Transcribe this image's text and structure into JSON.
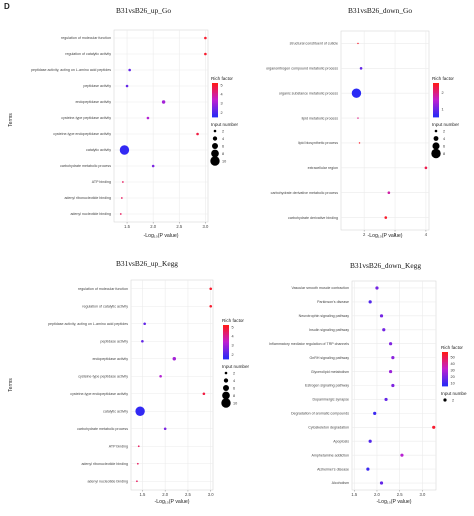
{
  "figure_label": "D",
  "legend_text": {
    "rich_factor": "Rich factor",
    "input_number": "Input number",
    "input_numbe": "Input numbe"
  },
  "colors": {
    "high": "#ff1a1a",
    "mid": "#c020d0",
    "low": "#2a2af5",
    "grid": "#ebebeb",
    "panel_bg": "#ffffff"
  },
  "chart_data": [
    {
      "type": "scatter",
      "title": "B31vsB26_up_Go",
      "xlabel": "-Log₁₀(P value)",
      "ylabel": "Terms",
      "xlim": [
        1.25,
        3.05
      ],
      "x_ticks": [
        "1.5",
        "2.0",
        "2.5",
        "3.0"
      ],
      "x_tick_values": [
        1.5,
        2.0,
        2.5,
        3.0
      ],
      "color_legend": {
        "title": "Rich factor",
        "ticks": [
          "5",
          "4",
          "3",
          "2"
        ],
        "tick_values": [
          5,
          4,
          3,
          2
        ],
        "range": [
          1.5,
          5.2
        ]
      },
      "size_legend": {
        "title": "Input number",
        "labels": [
          "2",
          "4",
          "6",
          "8",
          "10"
        ],
        "values": [
          2,
          4,
          6,
          8,
          10
        ]
      },
      "categories": [
        "regulation of molecular function",
        "regulation of catalytic activity",
        "peptidase activity, acting on L-amino acid peptides",
        "peptidase activity",
        "endopeptidase activity",
        "cysteine-type peptidase activity",
        "cysteine-type endopeptidase activity",
        "catalytic activity",
        "carbohydrate metabolic process",
        "ATP binding",
        "adenyl ribonucleotide binding",
        "adenyl nucleotide binding"
      ],
      "x": [
        3.0,
        3.0,
        1.55,
        1.5,
        2.2,
        1.9,
        2.85,
        1.45,
        2.0,
        1.42,
        1.4,
        1.38
      ],
      "rich_factor": [
        5,
        5,
        2.2,
        2.2,
        3,
        3.2,
        4.8,
        1.6,
        2.5,
        4.5,
        4.5,
        4.5
      ],
      "input_number": [
        2,
        2,
        2,
        2,
        3,
        2,
        2,
        10,
        2,
        1,
        1,
        1
      ]
    },
    {
      "type": "scatter",
      "title": "B31vsB26_down_Go",
      "xlabel": "-Log₁₀(P value)",
      "ylabel": "",
      "xlim": [
        1.25,
        4.1
      ],
      "x_ticks": [
        "2",
        "3",
        "4"
      ],
      "x_tick_values": [
        2,
        3,
        4
      ],
      "color_legend": {
        "title": "Rich factor",
        "ticks": [
          "2",
          "1"
        ],
        "tick_values": [
          2,
          1
        ],
        "range": [
          0.5,
          2.6
        ]
      },
      "size_legend": {
        "title": "Input number",
        "labels": [
          "2",
          "4",
          "6",
          "8"
        ],
        "values": [
          2,
          4,
          6,
          8
        ]
      },
      "categories": [
        "structural constituent of cuticle",
        "organonitrogen compound metabolic process",
        "organic substance metabolic process",
        "lipid metabolic process",
        "lipid biosynthetic process",
        "extracellular region",
        "carbohydrate derivative metabolic process",
        "carbohydrate derivative binding"
      ],
      "x": [
        1.8,
        1.9,
        1.75,
        1.8,
        1.85,
        4.0,
        2.8,
        2.7
      ],
      "rich_factor": [
        2.5,
        0.9,
        0.5,
        2.0,
        2.5,
        2.3,
        1.8,
        2.5
      ],
      "input_number": [
        1,
        2,
        8,
        1,
        1,
        2,
        2,
        2
      ]
    },
    {
      "type": "scatter",
      "title": "B31vsB26_up_Kegg",
      "xlabel": "-Log₁₀(P value)",
      "ylabel": "Terms",
      "xlim": [
        1.25,
        3.05
      ],
      "x_ticks": [
        "1.5",
        "2.0",
        "2.5",
        "3.0"
      ],
      "x_tick_values": [
        1.5,
        2.0,
        2.5,
        3.0
      ],
      "color_legend": {
        "title": "Rich factor",
        "ticks": [
          "5",
          "4",
          "3",
          "2"
        ],
        "tick_values": [
          5,
          4,
          3,
          2
        ],
        "range": [
          1.5,
          5.2
        ]
      },
      "size_legend": {
        "title": "Input number",
        "labels": [
          "2",
          "4",
          "6",
          "8",
          "10"
        ],
        "values": [
          2,
          4,
          6,
          8,
          10
        ]
      },
      "categories": [
        "regulation of molecular function",
        "regulation of catalytic activity",
        "peptidase activity, acting on L-amino acid peptides",
        "peptidase activity",
        "endopeptidase activity",
        "cysteine-type peptidase activity",
        "cysteine-type endopeptidase activity",
        "catalytic activity",
        "carbohydrate metabolic process",
        "ATP binding",
        "adenyl ribonucleotide binding",
        "adenyl nucleotide binding"
      ],
      "x": [
        3.0,
        3.0,
        1.55,
        1.5,
        2.2,
        1.9,
        2.85,
        1.45,
        2.0,
        1.42,
        1.4,
        1.38
      ],
      "rich_factor": [
        5,
        5,
        2.2,
        2.2,
        3,
        3.2,
        4.8,
        1.6,
        2.5,
        4.5,
        4.5,
        4.5
      ],
      "input_number": [
        2,
        2,
        2,
        2,
        3,
        2,
        2,
        10,
        2,
        1,
        1,
        1
      ]
    },
    {
      "type": "scatter",
      "title": "B31vsB26_down_Kegg",
      "xlabel": "-Log₁₀(P value)",
      "ylabel": "",
      "xlim": [
        1.45,
        3.3
      ],
      "x_ticks": [
        "1.5",
        "2.0",
        "2.5",
        "3.0"
      ],
      "x_tick_values": [
        1.5,
        2.0,
        2.5,
        3.0
      ],
      "color_legend": {
        "title": "Rich factor",
        "ticks": [
          "50",
          "40",
          "30",
          "20",
          "10"
        ],
        "tick_values": [
          50,
          40,
          30,
          20,
          10
        ],
        "range": [
          5,
          58
        ]
      },
      "size_legend": {
        "title": "Input numbe",
        "labels": [
          "2"
        ],
        "values": [
          2
        ]
      },
      "categories": [
        "Vascular smooth muscle contraction",
        "Parkinson's disease",
        "Neurotrophin signaling pathway",
        "Insulin signaling pathway",
        "Inflammatory mediator regulation of TRP channels",
        "GnRH signaling pathway",
        "Glycerolipid metabolism",
        "Estrogen signaling pathway",
        "Dopaminergic synapse",
        "Degradation of aromatic compounds",
        "Cytoskeleton degradation",
        "Apoptosis",
        "Amphetamine addiction",
        "Alzheimer's disease",
        "Alcoholism"
      ],
      "x": [
        2.0,
        1.85,
        2.1,
        2.15,
        2.3,
        2.35,
        2.3,
        2.35,
        2.2,
        1.95,
        3.25,
        1.85,
        2.55,
        1.8,
        2.1
      ],
      "rich_factor": [
        18,
        12,
        18,
        18,
        20,
        22,
        25,
        20,
        15,
        8,
        55,
        12,
        30,
        8,
        15
      ],
      "input_number": [
        2,
        2,
        2,
        2,
        2,
        2,
        2,
        2,
        2,
        2,
        2,
        2,
        2,
        2,
        2
      ]
    }
  ]
}
